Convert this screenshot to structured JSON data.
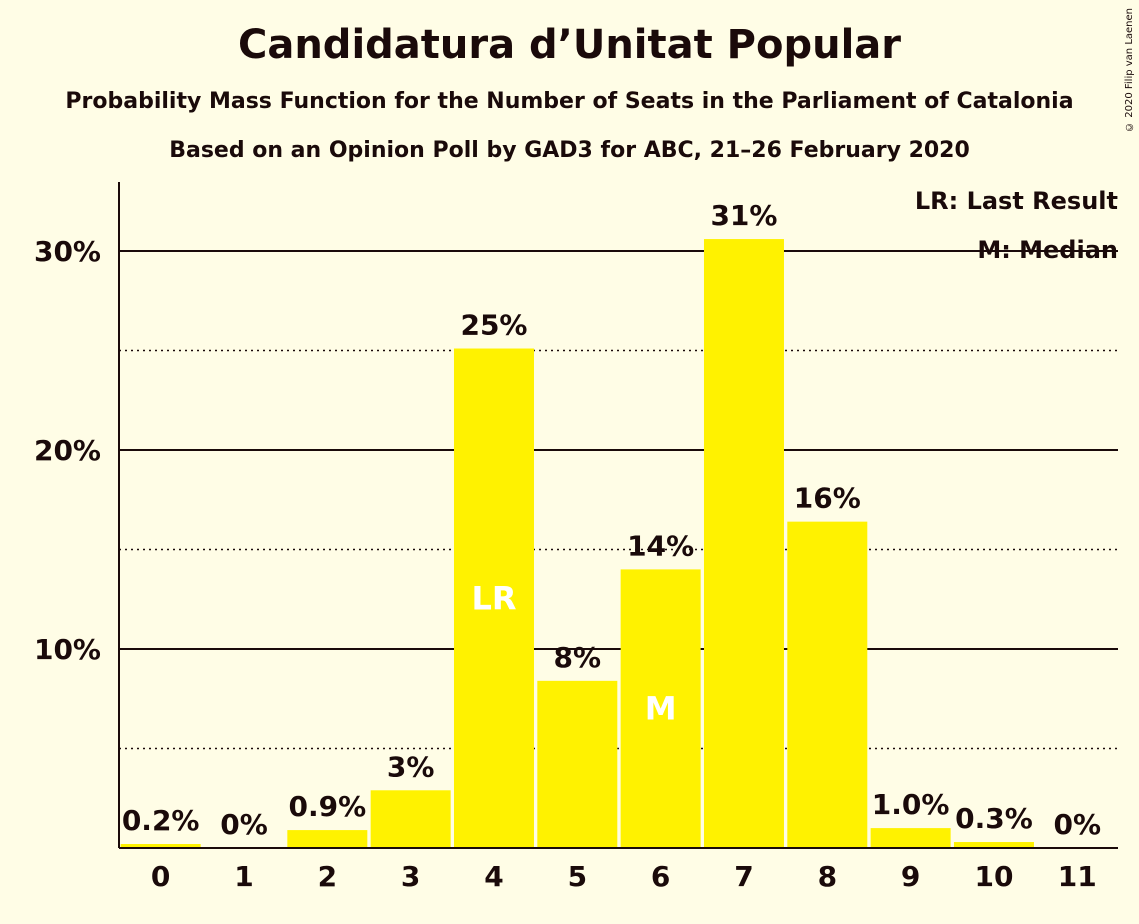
{
  "title": "Candidatura d’Unitat Popular",
  "subtitle1": "Probability Mass Function for the Number of Seats in the Parliament of Catalonia",
  "subtitle2": "Based on an Opinion Poll by GAD3 for ABC, 21–26 February 2020",
  "copyright": "© 2020 Filip van Laenen",
  "legend": {
    "last_result": "LR: Last Result",
    "median": "M: Median"
  },
  "colors": {
    "background": "#fffde6",
    "bar": "#fff200",
    "text": "#1a0a0a",
    "marker_text": "#ffffff"
  },
  "chart_data": {
    "type": "bar",
    "categories": [
      "0",
      "1",
      "2",
      "3",
      "4",
      "5",
      "6",
      "7",
      "8",
      "9",
      "10",
      "11"
    ],
    "values": [
      0.2,
      0,
      0.9,
      2.9,
      25.1,
      8.4,
      14.0,
      30.6,
      16.4,
      1.0,
      0.3,
      0
    ],
    "labels": [
      "0.2%",
      "0%",
      "0.9%",
      "3%",
      "25%",
      "8%",
      "14%",
      "31%",
      "16%",
      "1.0%",
      "0.3%",
      "0%"
    ],
    "markers": {
      "4": "LR",
      "6": "M"
    },
    "ylim": [
      0,
      33.5
    ],
    "yticks": [
      10,
      20,
      30
    ],
    "ytick_labels": [
      "10%",
      "20%",
      "30%"
    ],
    "dotted_gridlines": [
      5,
      15,
      25
    ],
    "legend_placement": "top-right"
  }
}
